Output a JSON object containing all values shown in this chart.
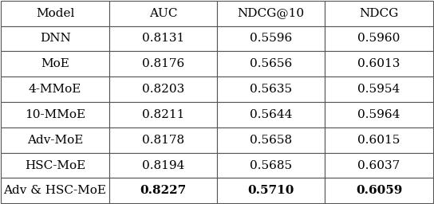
{
  "columns": [
    "Model",
    "AUC",
    "NDCG@10",
    "NDCG"
  ],
  "rows": [
    [
      "DNN",
      "0.8131",
      "0.5596",
      "0.5960"
    ],
    [
      "MoE",
      "0.8176",
      "0.5656",
      "0.6013"
    ],
    [
      "4-MMoE",
      "0.8203",
      "0.5635",
      "0.5954"
    ],
    [
      "10-MMoE",
      "0.8211",
      "0.5644",
      "0.5964"
    ],
    [
      "Adv-MoE",
      "0.8178",
      "0.5658",
      "0.6015"
    ],
    [
      "HSC-MoE",
      "0.8194",
      "0.5685",
      "0.6037"
    ],
    [
      "Adv & HSC-MoE",
      "0.8227",
      "0.5710",
      "0.6059"
    ]
  ],
  "bold_last_row": true,
  "font_size": 11,
  "fig_width": 5.44,
  "fig_height": 2.56,
  "background_color": "#ffffff",
  "edge_color": "#555555",
  "line_width": 0.8
}
